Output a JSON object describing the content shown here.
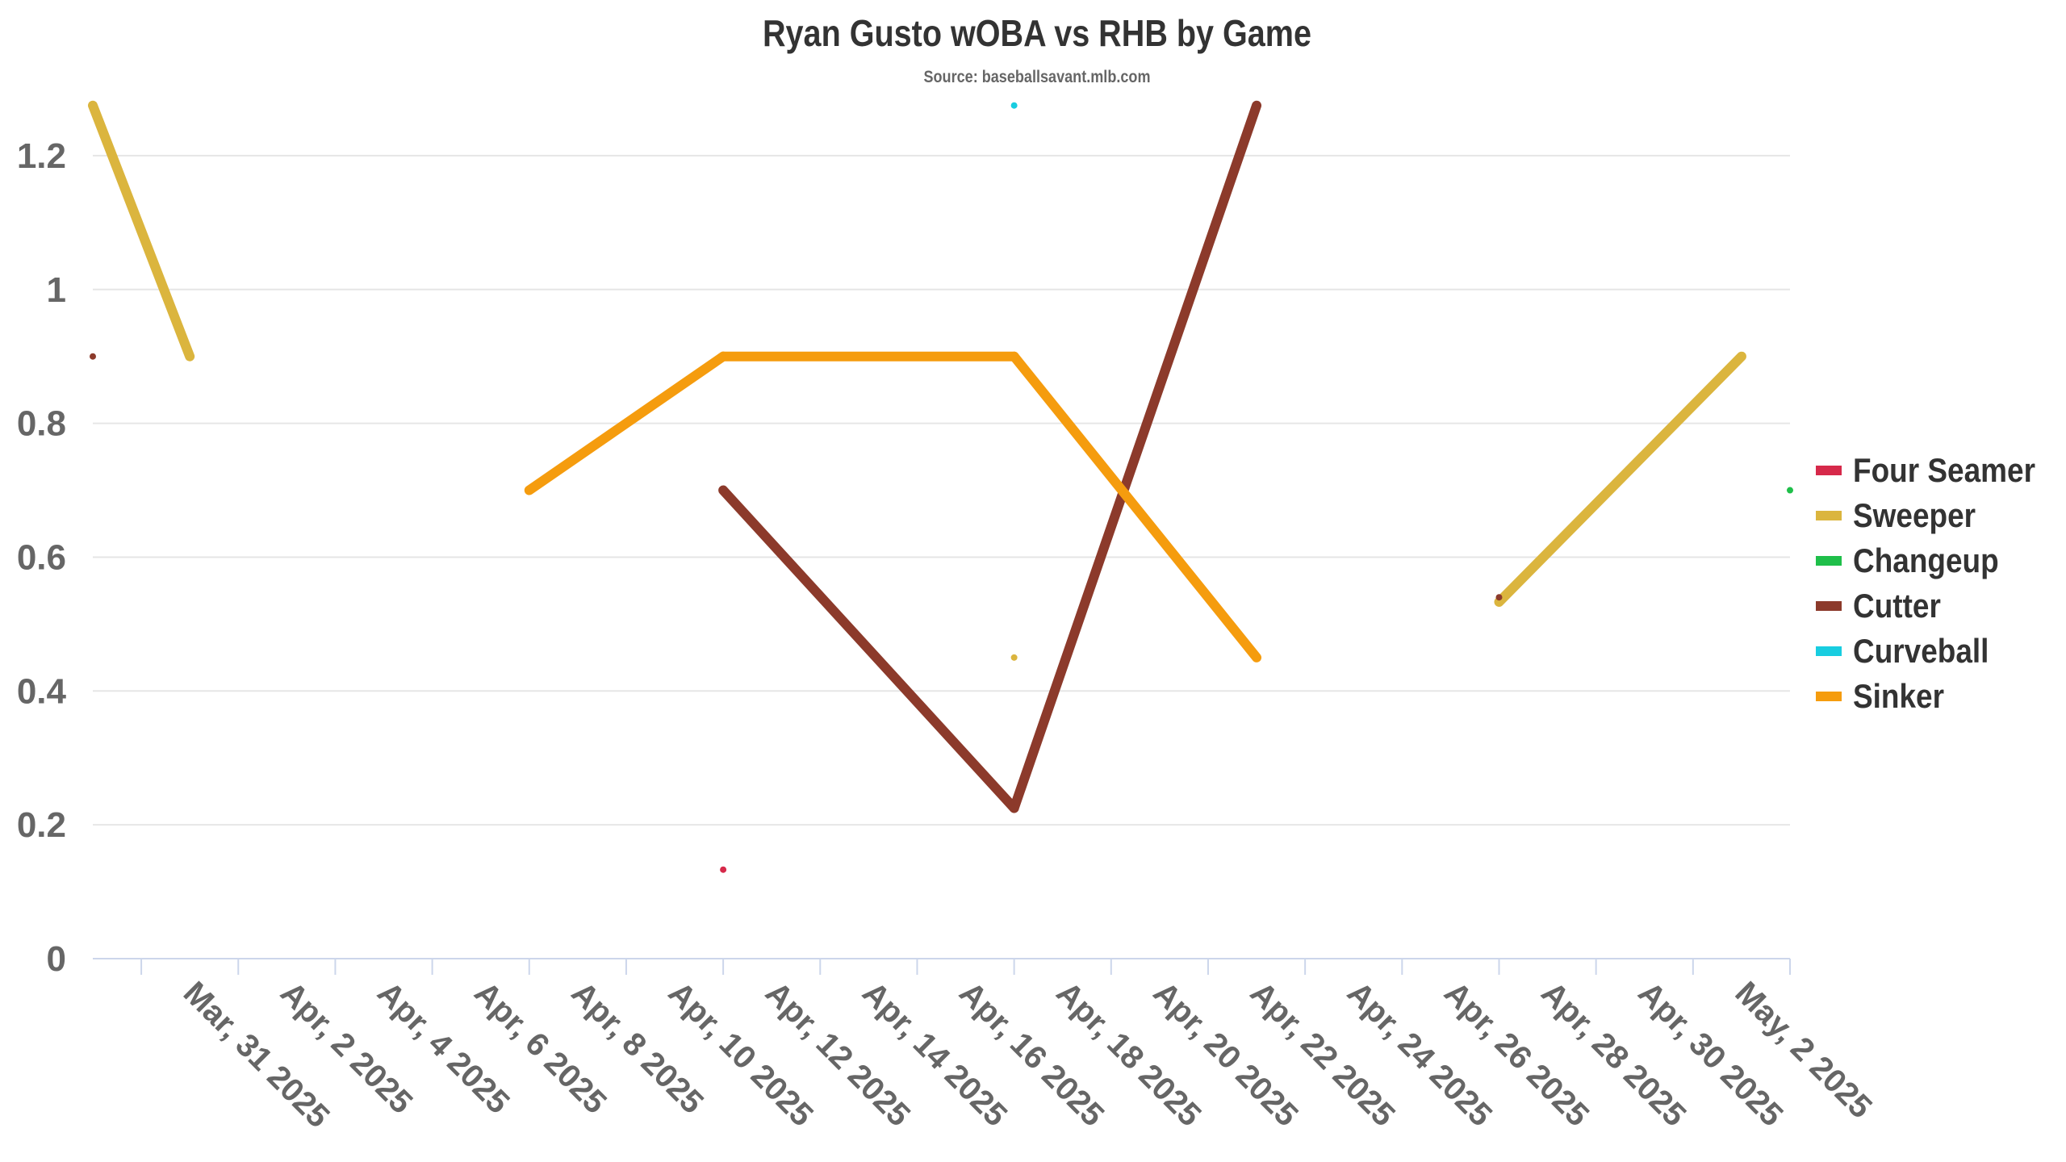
{
  "chart_data": {
    "type": "line",
    "title": "Ryan Gusto wOBA vs RHB by Game",
    "subtitle": "Source: baseballsavant.mlb.com",
    "xlabel": "",
    "ylabel": "",
    "ylim": [
      0,
      1.3
    ],
    "yticks": [
      "0",
      "0.2",
      "0.4",
      "0.6",
      "0.8",
      "1",
      "1.2"
    ],
    "xlim": [
      "2025-03-29",
      "2025-05-03"
    ],
    "xticks": [
      {
        "date": "2025-03-31",
        "label": "Mar, 31 2025"
      },
      {
        "date": "2025-04-02",
        "label": "Apr, 2 2025"
      },
      {
        "date": "2025-04-04",
        "label": "Apr, 4 2025"
      },
      {
        "date": "2025-04-06",
        "label": "Apr, 6 2025"
      },
      {
        "date": "2025-04-08",
        "label": "Apr, 8 2025"
      },
      {
        "date": "2025-04-10",
        "label": "Apr, 10 2025"
      },
      {
        "date": "2025-04-12",
        "label": "Apr, 12 2025"
      },
      {
        "date": "2025-04-14",
        "label": "Apr, 14 2025"
      },
      {
        "date": "2025-04-16",
        "label": "Apr, 16 2025"
      },
      {
        "date": "2025-04-18",
        "label": "Apr, 18 2025"
      },
      {
        "date": "2025-04-20",
        "label": "Apr, 20 2025"
      },
      {
        "date": "2025-04-22",
        "label": "Apr, 22 2025"
      },
      {
        "date": "2025-04-24",
        "label": "Apr, 24 2025"
      },
      {
        "date": "2025-04-26",
        "label": "Apr, 26 2025"
      },
      {
        "date": "2025-04-28",
        "label": "Apr, 28 2025"
      },
      {
        "date": "2025-04-30",
        "label": "Apr, 30 2025"
      },
      {
        "date": "2025-05-02",
        "label": "May, 2 2025"
      }
    ],
    "grid": "horizontal",
    "legend_position": "right",
    "series": [
      {
        "name": "Four Seamer",
        "color": "#d6294a",
        "points": [
          {
            "x": "2025-04-11",
            "y": 0.133
          }
        ]
      },
      {
        "name": "Sweeper",
        "color": "#dbb53e",
        "points": [
          {
            "x": "2025-03-29",
            "y": 1.275
          },
          {
            "x": "2025-03-31",
            "y": 0.9
          },
          {
            "x": "2025-04-17",
            "y": 0.45
          },
          {
            "x": "2025-04-27",
            "y": 0.533
          },
          {
            "x": "2025-05-02",
            "y": 0.9
          }
        ],
        "segments": [
          [
            0,
            1
          ],
          [
            3,
            4
          ]
        ]
      },
      {
        "name": "Changeup",
        "color": "#1fbf4a",
        "points": [
          {
            "x": "2025-05-03",
            "y": 0.7
          }
        ]
      },
      {
        "name": "Cutter",
        "color": "#8c3a2b",
        "points": [
          {
            "x": "2025-03-29",
            "y": 0.9
          },
          {
            "x": "2025-04-11",
            "y": 0.7
          },
          {
            "x": "2025-04-17",
            "y": 0.225
          },
          {
            "x": "2025-04-22",
            "y": 1.275
          },
          {
            "x": "2025-04-27",
            "y": 0.54
          }
        ],
        "segments": [
          [
            1,
            2
          ],
          [
            2,
            3
          ]
        ]
      },
      {
        "name": "Curveball",
        "color": "#18cde0",
        "points": [
          {
            "x": "2025-04-17",
            "y": 1.275
          }
        ]
      },
      {
        "name": "Sinker",
        "color": "#f59c0e",
        "points": [
          {
            "x": "2025-04-07",
            "y": 0.7
          },
          {
            "x": "2025-04-11",
            "y": 0.9
          },
          {
            "x": "2025-04-17",
            "y": 0.9
          },
          {
            "x": "2025-04-22",
            "y": 0.45
          }
        ],
        "segments": [
          [
            0,
            1
          ],
          [
            1,
            2
          ],
          [
            2,
            3
          ]
        ]
      }
    ]
  }
}
